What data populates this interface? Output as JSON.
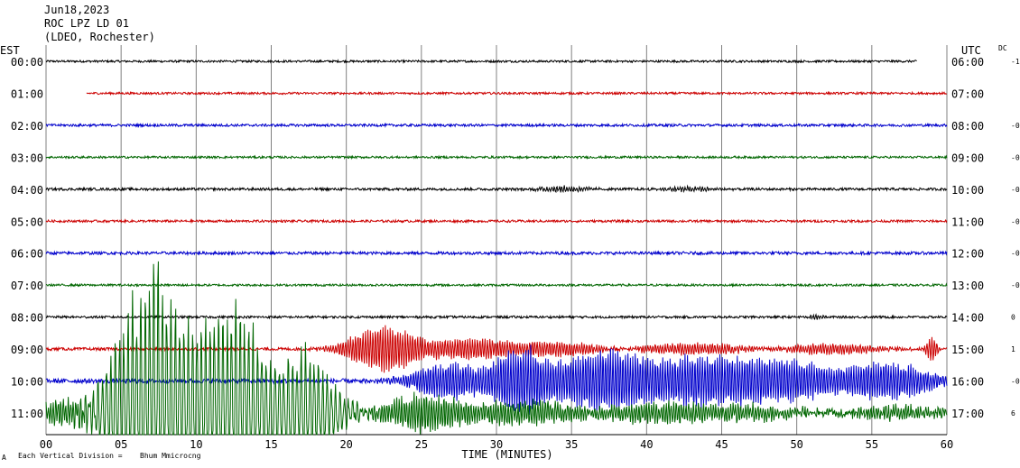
{
  "header": {
    "date": "Jun18,2023",
    "station": "ROC LPZ LD 01",
    "network": "(LDEO, Rochester)"
  },
  "left_zone": "EST",
  "right_zone": "UTC",
  "dc_label": "DC",
  "footer": {
    "left": "Each Vertical Division = ",
    "right": "Bhum Mmicrocng"
  },
  "chart_data": {
    "type": "line",
    "xlabel": "TIME (MINUTES)",
    "xlim": [
      0,
      60
    ],
    "xticks": [
      "00",
      "05",
      "10",
      "15",
      "20",
      "25",
      "30",
      "35",
      "40",
      "45",
      "50",
      "55",
      "60"
    ],
    "colors": {
      "black": "#000000",
      "red": "#cc0000",
      "blue": "#0000cc",
      "green": "#006600",
      "grid": "#808080"
    },
    "rows": [
      {
        "est": "00:00",
        "utc": "06:00",
        "dc": "-1",
        "color": "black",
        "start": 0,
        "end": 58,
        "noise": 1.2,
        "events": []
      },
      {
        "est": "01:00",
        "utc": "07:00",
        "dc": "",
        "color": "red",
        "start": 2.7,
        "end": 60,
        "noise": 1.2,
        "events": []
      },
      {
        "est": "02:00",
        "utc": "08:00",
        "dc": "-0",
        "color": "blue",
        "start": 0,
        "end": 60,
        "noise": 1.4,
        "events": []
      },
      {
        "est": "03:00",
        "utc": "09:00",
        "dc": "-0",
        "color": "green",
        "start": 0,
        "end": 60,
        "noise": 1.2,
        "events": []
      },
      {
        "est": "04:00",
        "utc": "10:00",
        "dc": "-0",
        "color": "black",
        "start": 0,
        "end": 60,
        "noise": 1.4,
        "events": [
          {
            "t": 34.5,
            "w": 2,
            "a": 3.5
          },
          {
            "t": 43,
            "w": 2,
            "a": 3
          }
        ]
      },
      {
        "est": "05:00",
        "utc": "11:00",
        "dc": "-0",
        "color": "red",
        "start": 0,
        "end": 60,
        "noise": 1.3,
        "events": []
      },
      {
        "est": "06:00",
        "utc": "12:00",
        "dc": "-0",
        "color": "blue",
        "start": 0,
        "end": 60,
        "noise": 1.6,
        "events": []
      },
      {
        "est": "07:00",
        "utc": "13:00",
        "dc": "-0",
        "color": "green",
        "start": 0,
        "end": 60,
        "noise": 1.2,
        "events": []
      },
      {
        "est": "08:00",
        "utc": "14:00",
        "dc": "0",
        "color": "black",
        "start": 0,
        "end": 60,
        "noise": 1.3,
        "events": [
          {
            "t": 51.5,
            "w": 0.6,
            "a": 3
          }
        ]
      },
      {
        "est": "09:00",
        "utc": "15:00",
        "dc": "1",
        "color": "red",
        "start": 0,
        "end": 60,
        "noise": 1.6,
        "events": [
          {
            "t": 22.5,
            "w": 2.6,
            "a": 28
          },
          {
            "t": 28,
            "w": 3,
            "a": 12
          },
          {
            "t": 34,
            "w": 4,
            "a": 9
          },
          {
            "t": 43,
            "w": 5,
            "a": 7
          },
          {
            "t": 52,
            "w": 4,
            "a": 7
          },
          {
            "t": 59,
            "w": 0.4,
            "a": 14
          }
        ]
      },
      {
        "est": "10:00",
        "utc": "16:00",
        "dc": "-0",
        "color": "blue",
        "start": 0,
        "end": 60,
        "noise": 2.5,
        "events": [
          {
            "t": 27,
            "w": 3,
            "a": 22
          },
          {
            "t": 31.5,
            "w": 2.5,
            "a": 40
          },
          {
            "t": 37,
            "w": 3,
            "a": 36
          },
          {
            "t": 43,
            "w": 4,
            "a": 28
          },
          {
            "t": 49,
            "w": 4,
            "a": 24
          },
          {
            "t": 56,
            "w": 3.5,
            "a": 22
          }
        ]
      },
      {
        "est": "11:00",
        "utc": "17:00",
        "dc": "6",
        "color": "green",
        "start": 0,
        "end": 60,
        "noise": 4,
        "events": [
          {
            "t": 2,
            "w": 3,
            "a": 16
          },
          {
            "t": 7,
            "w": 2.5,
            "a": 22
          },
          {
            "t": 12,
            "w": 3,
            "a": 20
          },
          {
            "t": 17,
            "w": 3,
            "a": 14
          },
          {
            "t": 25,
            "w": 3,
            "a": 22
          },
          {
            "t": 32,
            "w": 4,
            "a": 14
          },
          {
            "t": 40,
            "w": 4,
            "a": 10
          },
          {
            "t": 47,
            "w": 6,
            "a": 9
          },
          {
            "t": 56,
            "w": 5,
            "a": 8
          }
        ]
      },
      {
        "est": "",
        "utc": "",
        "dc": "",
        "color": "green",
        "start": 0,
        "end": 20,
        "noise": 0,
        "overflow_from": 11,
        "events": []
      }
    ],
    "overflow_bursts": [
      {
        "row": 11,
        "t": 7,
        "w": 2.8,
        "a": 175
      },
      {
        "row": 11,
        "t": 12.5,
        "w": 2.8,
        "a": 130
      },
      {
        "row": 11,
        "t": 17,
        "w": 2.5,
        "a": 75
      }
    ]
  }
}
